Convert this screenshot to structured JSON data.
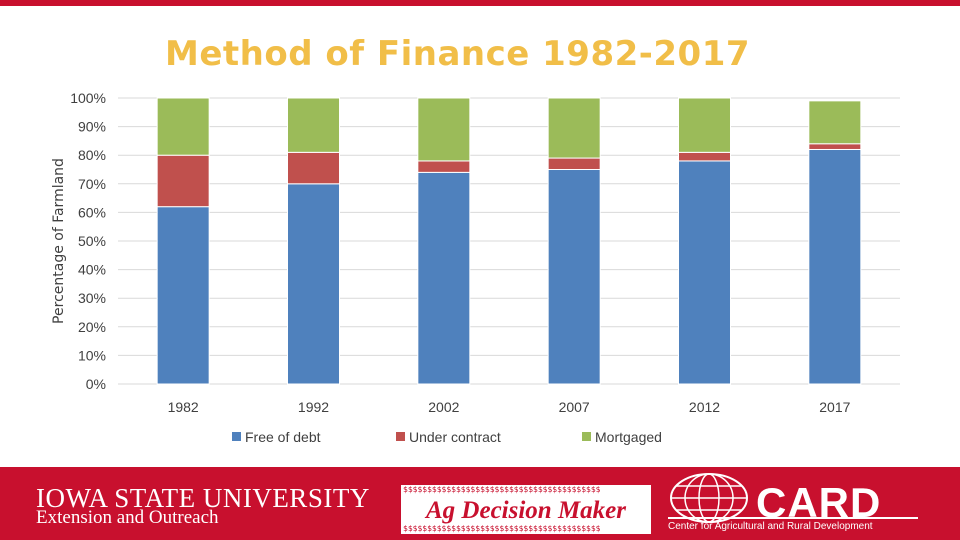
{
  "chart_data": {
    "type": "bar",
    "stacked": true,
    "title": "Method of Finance 1982-2017",
    "ylabel": "Percentage of Farmland",
    "xlabel": "",
    "categories": [
      "1982",
      "1992",
      "2002",
      "2007",
      "2012",
      "2017"
    ],
    "series": [
      {
        "name": "Free of debt",
        "color": "#4f81bd",
        "values": [
          62,
          70,
          74,
          75,
          78,
          82
        ]
      },
      {
        "name": "Under contract",
        "color": "#c0504d",
        "values": [
          18,
          11,
          4,
          4,
          3,
          2
        ]
      },
      {
        "name": "Mortgaged",
        "color": "#9bbb59",
        "values": [
          20,
          19,
          22,
          21,
          19,
          15
        ]
      }
    ],
    "ylim": [
      0,
      100
    ],
    "yticks": [
      "0%",
      "10%",
      "20%",
      "30%",
      "40%",
      "50%",
      "60%",
      "70%",
      "80%",
      "90%",
      "100%"
    ],
    "grid": true,
    "legend": "bottom"
  },
  "footer": {
    "isu_line1": "IOWA STATE UNIVERSITY",
    "isu_line2": "Extension and Outreach",
    "ag_decision_maker": "Ag Decision Maker",
    "card_acronym": "CARD",
    "card_full": "Center for Agricultural and Rural Development"
  },
  "colors": {
    "isu_red": "#c8102e",
    "title_gold": "#f1be48"
  }
}
